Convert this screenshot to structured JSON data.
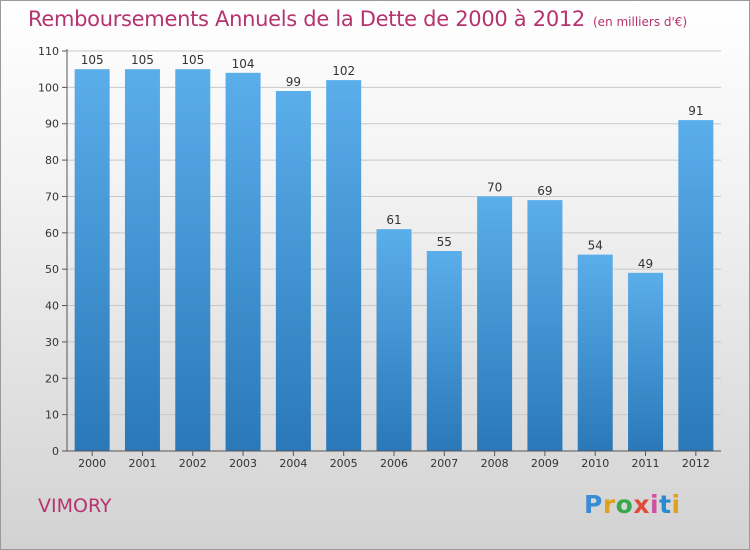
{
  "chart_data": {
    "type": "bar",
    "title": "Remboursements Annuels de la Dette de 2000 à 2012",
    "unit_note": "(en milliers d'€)",
    "categories": [
      "2000",
      "2001",
      "2002",
      "2003",
      "2004",
      "2005",
      "2006",
      "2007",
      "2008",
      "2009",
      "2010",
      "2011",
      "2012"
    ],
    "values": [
      105,
      105,
      105,
      104,
      99,
      102,
      61,
      55,
      70,
      69,
      54,
      49,
      91
    ],
    "ylim": [
      0,
      110
    ],
    "yticks": [
      0,
      10,
      20,
      30,
      40,
      50,
      60,
      70,
      80,
      90,
      100,
      110
    ],
    "grid": true,
    "bar_color_top": "#5aaeea",
    "bar_color_bottom": "#2a78b8",
    "title_color": "#b5336f"
  },
  "commune": "VIMORY",
  "logo": {
    "text": "Proxiti"
  }
}
